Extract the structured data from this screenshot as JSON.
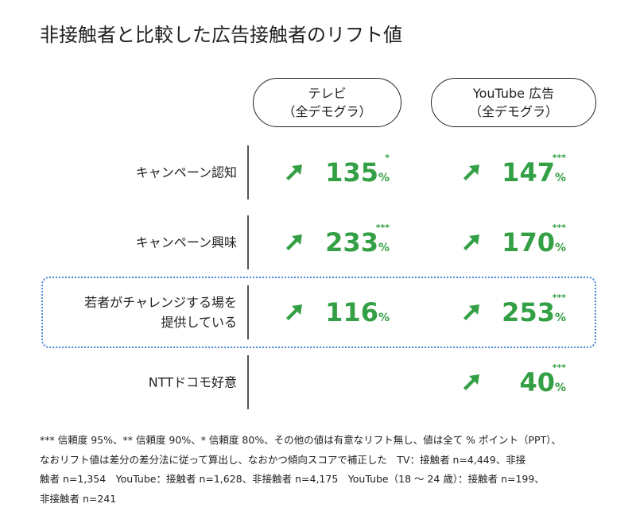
{
  "header": {
    "title": "非接触者と比較した広告接触者のリフト値"
  },
  "columns": [
    {
      "lines": [
        "テレビ",
        "（全デモグラ）"
      ]
    },
    {
      "lines": [
        "YouTube 広告",
        "（全デモグラ）"
      ]
    }
  ],
  "rows": [
    {
      "label": [
        "キャンペーン認知"
      ],
      "highlight": false,
      "cells": [
        {
          "value": "135",
          "unit": "%",
          "sig": "*"
        },
        {
          "value": "147",
          "unit": "%",
          "sig": "***"
        }
      ]
    },
    {
      "label": [
        "キャンペーン興味"
      ],
      "highlight": false,
      "cells": [
        {
          "value": "233",
          "unit": "%",
          "sig": "***"
        },
        {
          "value": "170",
          "unit": "%",
          "sig": "***"
        }
      ]
    },
    {
      "label": [
        "若者がチャレンジする場を",
        "提供している"
      ],
      "highlight": true,
      "cells": [
        {
          "value": "116",
          "unit": "%"
        },
        {
          "value": "253",
          "unit": "%",
          "sig": "***"
        }
      ]
    },
    {
      "label": [
        "NTTドコモ好意"
      ],
      "highlight": false,
      "cells": [
        null,
        {
          "value": "40",
          "unit": "%",
          "sig": "***"
        }
      ]
    }
  ],
  "footnote": [
    "*** 信頼度 95%、** 信頼度 90%、* 信頼度 80%、その他の値は有意なリフト無し、値は全て % ポイント（PPT）、",
    "なおリフト値は差分の差分法に従って算出し、なおかつ傾向スコアで補正した　TV：接触者 n=4,449、非接",
    "触者 n=1,354　YouTube：接触者 n=1,628、非接触者 n=4,175　YouTube（18 ～ 24 歳）：接触者 n=199、",
    "非接触者 n=241"
  ]
}
